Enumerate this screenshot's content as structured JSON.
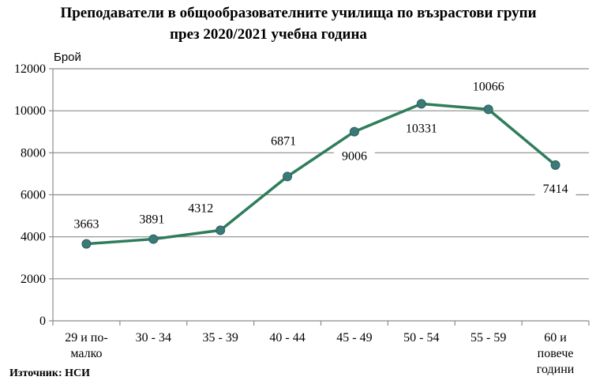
{
  "chart_data": {
    "type": "line",
    "title": "Преподаватели в общообразователните училища по възрастови групи",
    "subtitle": "през 2020/2021 учебна година",
    "ylabel": "Брой",
    "xlabel": "",
    "categories": [
      [
        "29 и по-",
        "малко"
      ],
      [
        "30 - 34"
      ],
      [
        "35 - 39"
      ],
      [
        "40 - 44"
      ],
      [
        "45 - 49"
      ],
      [
        "50 - 54"
      ],
      [
        "55 - 59"
      ],
      [
        "60 и",
        "повече",
        "години"
      ]
    ],
    "values": [
      3663,
      3891,
      4312,
      6871,
      9006,
      10331,
      10066,
      7414
    ],
    "data_labels": [
      "3663",
      "3891",
      "4312",
      "6871",
      "9006",
      "10331",
      "10066",
      "7414"
    ],
    "ylim": [
      0,
      12000
    ],
    "yticks": [
      "0",
      "2000",
      "4000",
      "6000",
      "8000",
      "10000",
      "12000"
    ],
    "grid": true,
    "line_color": "#2e7d5b",
    "marker_color": "#3a7a78",
    "grid_color": "#8c8c8c",
    "source": "Източник: НСИ"
  }
}
